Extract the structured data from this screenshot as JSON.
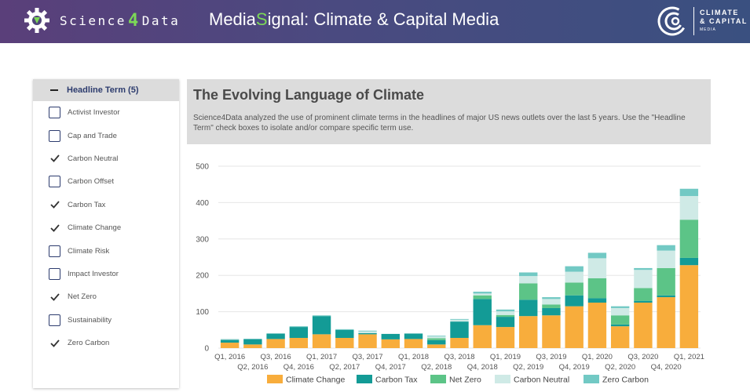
{
  "header": {
    "brand_science": "Science",
    "brand_four": "4",
    "brand_data": "Data",
    "title_prefix": "Media",
    "title_s": "S",
    "title_rest": "ignal: Climate & Capital Media",
    "partner_line1": "CLIMATE",
    "partner_line2": "& CAPITAL",
    "partner_line3": "MEDIA"
  },
  "sidebar": {
    "title": "Headline Term (5)",
    "items": [
      {
        "label": "Activist Investor",
        "checked": false
      },
      {
        "label": "Cap and Trade",
        "checked": false
      },
      {
        "label": "Carbon Neutral",
        "checked": true
      },
      {
        "label": "Carbon Offset",
        "checked": false
      },
      {
        "label": "Carbon Tax",
        "checked": true
      },
      {
        "label": "Climate Change",
        "checked": true
      },
      {
        "label": "Climate Risk",
        "checked": false
      },
      {
        "label": "Impact Investor",
        "checked": false
      },
      {
        "label": "Net Zero",
        "checked": true
      },
      {
        "label": "Sustainability",
        "checked": false
      },
      {
        "label": "Zero Carbon",
        "checked": true
      }
    ]
  },
  "panel": {
    "title": "The Evolving Language of Climate",
    "description": "Science4Data analyzed the use of prominent climate terms in the headlines of major US news outlets over the last 5 years. Use the \"Headline Term\" check boxes to isolate and/or compare specific term use."
  },
  "colors": {
    "Climate Change": "#f8ad3c",
    "Carbon Tax": "#139b96",
    "Net Zero": "#5cc487",
    "Carbon Neutral": "#cfeae6",
    "Zero Carbon": "#72c9c4"
  },
  "chart_data": {
    "type": "bar",
    "stacked": true,
    "categories": [
      "Q1, 2016",
      "Q2, 2016",
      "Q3, 2016",
      "Q4, 2016",
      "Q1, 2017",
      "Q2, 2017",
      "Q3, 2017",
      "Q4, 2017",
      "Q1, 2018",
      "Q2, 2018",
      "Q3, 2018",
      "Q4, 2018",
      "Q1, 2019",
      "Q2, 2019",
      "Q3, 2019",
      "Q4, 2019",
      "Q1, 2020",
      "Q2, 2020",
      "Q3, 2020",
      "Q4, 2020",
      "Q1, 2021"
    ],
    "series": [
      {
        "name": "Climate Change",
        "values": [
          15,
          10,
          25,
          28,
          38,
          28,
          38,
          24,
          25,
          10,
          28,
          63,
          58,
          88,
          90,
          115,
          125,
          60,
          125,
          140,
          228
        ]
      },
      {
        "name": "Carbon Tax",
        "values": [
          8,
          15,
          15,
          30,
          50,
          22,
          3,
          15,
          15,
          12,
          45,
          72,
          28,
          45,
          20,
          30,
          12,
          5,
          5,
          5,
          20
        ]
      },
      {
        "name": "Net Zero",
        "values": [
          0,
          0,
          0,
          0,
          0,
          0,
          0,
          0,
          0,
          5,
          0,
          10,
          5,
          45,
          10,
          35,
          55,
          25,
          35,
          75,
          105
        ]
      },
      {
        "name": "Carbon Neutral",
        "values": [
          3,
          0,
          0,
          0,
          0,
          0,
          5,
          0,
          0,
          5,
          5,
          5,
          10,
          20,
          15,
          30,
          55,
          20,
          50,
          48,
          65
        ]
      },
      {
        "name": "Zero Carbon",
        "values": [
          0,
          0,
          0,
          2,
          2,
          2,
          2,
          0,
          0,
          2,
          2,
          5,
          5,
          10,
          5,
          15,
          15,
          5,
          5,
          15,
          20
        ]
      }
    ],
    "xlabel": "",
    "ylabel": "",
    "ylim": [
      0,
      500
    ],
    "yticks": [
      0,
      100,
      200,
      300,
      400,
      500
    ],
    "grid": true,
    "legend": "bottom"
  }
}
